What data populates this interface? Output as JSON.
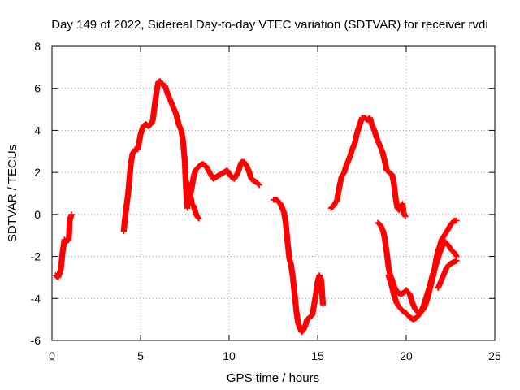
{
  "chart_data": {
    "type": "scatter",
    "title": "Day 149 of 2022, Sidereal Day-to-day VTEC variation (SDTVAR) for receiver rvdi",
    "xlabel": "GPS time / hours",
    "ylabel": "SDTVAR / TECUs",
    "xlim": [
      0,
      25
    ],
    "ylim": [
      -6,
      8
    ],
    "xticks": [
      "0",
      "5",
      "10",
      "15",
      "20",
      "25"
    ],
    "yticks": [
      "-6",
      "-4",
      "-2",
      "0",
      "2",
      "4",
      "6",
      "8"
    ],
    "grid": true,
    "marker": "+",
    "color": "#ff0000",
    "segments": [
      [
        [
          0.2,
          -2.9
        ],
        [
          0.35,
          -3.0
        ],
        [
          0.5,
          -2.6
        ],
        [
          0.6,
          -1.8
        ],
        [
          0.7,
          -1.2
        ],
        [
          0.8,
          -1.3
        ],
        [
          0.95,
          -1.2
        ],
        [
          1.0,
          -0.3
        ],
        [
          1.1,
          0.0
        ]
      ],
      [
        [
          4.05,
          -0.8
        ],
        [
          4.15,
          0.0
        ],
        [
          4.3,
          1.0
        ],
        [
          4.45,
          2.4
        ],
        [
          4.55,
          2.9
        ],
        [
          4.7,
          3.1
        ],
        [
          4.85,
          3.1
        ],
        [
          5.0,
          3.8
        ],
        [
          5.15,
          4.2
        ],
        [
          5.3,
          4.3
        ],
        [
          5.45,
          4.2
        ],
        [
          5.6,
          4.3
        ],
        [
          5.7,
          4.5
        ],
        [
          5.8,
          5.2
        ],
        [
          5.9,
          5.8
        ],
        [
          6.0,
          6.3
        ],
        [
          6.1,
          6.35
        ],
        [
          6.2,
          6.2
        ],
        [
          6.4,
          6.1
        ],
        [
          6.5,
          5.8
        ],
        [
          6.65,
          5.5
        ],
        [
          6.8,
          5.2
        ],
        [
          7.0,
          4.8
        ],
        [
          7.15,
          4.3
        ],
        [
          7.3,
          4.0
        ],
        [
          7.4,
          3.5
        ],
        [
          7.5,
          2.5
        ],
        [
          7.55,
          1.5
        ],
        [
          7.6,
          0.8
        ],
        [
          7.65,
          0.3
        ]
      ],
      [
        [
          7.7,
          0.5
        ],
        [
          7.8,
          0.9
        ],
        [
          7.9,
          1.3
        ],
        [
          8.0,
          1.8
        ],
        [
          8.1,
          2.1
        ],
        [
          8.3,
          2.3
        ],
        [
          8.5,
          2.4
        ],
        [
          8.7,
          2.3
        ],
        [
          8.9,
          2.0
        ],
        [
          9.1,
          1.7
        ],
        [
          9.3,
          1.8
        ],
        [
          9.5,
          1.9
        ],
        [
          9.7,
          2.0
        ],
        [
          9.9,
          2.1
        ],
        [
          10.1,
          1.8
        ],
        [
          10.3,
          1.7
        ],
        [
          10.5,
          2.0
        ],
        [
          10.7,
          2.5
        ],
        [
          10.85,
          2.5
        ],
        [
          11.0,
          2.3
        ],
        [
          11.1,
          2.1
        ],
        [
          11.25,
          1.7
        ],
        [
          11.4,
          1.6
        ],
        [
          11.6,
          1.5
        ],
        [
          11.7,
          1.4
        ]
      ],
      [
        [
          7.7,
          1.5
        ],
        [
          7.8,
          1.0
        ],
        [
          7.9,
          0.5
        ],
        [
          8.0,
          0.4
        ],
        [
          8.1,
          0.1
        ],
        [
          8.2,
          -0.1
        ],
        [
          8.3,
          -0.2
        ]
      ],
      [
        [
          12.5,
          0.7
        ],
        [
          12.7,
          0.7
        ],
        [
          12.9,
          0.5
        ],
        [
          13.1,
          0.1
        ],
        [
          13.2,
          -0.4
        ],
        [
          13.3,
          -1.3
        ],
        [
          13.4,
          -2.1
        ],
        [
          13.5,
          -2.4
        ],
        [
          13.6,
          -3.0
        ],
        [
          13.7,
          -3.8
        ],
        [
          13.8,
          -4.6
        ],
        [
          13.9,
          -5.2
        ],
        [
          14.0,
          -5.4
        ],
        [
          14.1,
          -5.6
        ],
        [
          14.2,
          -5.5
        ],
        [
          14.3,
          -5.3
        ],
        [
          14.4,
          -5.0
        ],
        [
          14.55,
          -4.9
        ],
        [
          14.7,
          -4.8
        ],
        [
          14.8,
          -4.3
        ],
        [
          14.9,
          -3.8
        ],
        [
          15.0,
          -3.2
        ],
        [
          15.1,
          -2.9
        ],
        [
          15.2,
          -3.1
        ],
        [
          15.3,
          -4.3
        ]
      ],
      [
        [
          15.75,
          0.3
        ],
        [
          15.9,
          0.4
        ],
        [
          16.1,
          0.7
        ],
        [
          16.2,
          1.2
        ],
        [
          16.35,
          1.8
        ],
        [
          16.5,
          2.0
        ],
        [
          16.6,
          2.3
        ],
        [
          16.8,
          2.7
        ],
        [
          16.95,
          3.1
        ],
        [
          17.1,
          3.4
        ],
        [
          17.2,
          3.8
        ],
        [
          17.35,
          4.2
        ],
        [
          17.5,
          4.6
        ],
        [
          17.65,
          4.6
        ],
        [
          17.8,
          4.5
        ],
        [
          17.95,
          4.6
        ],
        [
          18.05,
          4.3
        ],
        [
          18.2,
          4.0
        ],
        [
          18.35,
          3.6
        ],
        [
          18.5,
          3.3
        ],
        [
          18.65,
          3.0
        ],
        [
          18.8,
          2.5
        ],
        [
          18.9,
          2.1
        ],
        [
          19.05,
          2.0
        ],
        [
          19.2,
          1.9
        ],
        [
          19.3,
          1.5
        ],
        [
          19.4,
          0.8
        ],
        [
          19.5,
          0.3
        ],
        [
          19.6,
          0.2
        ],
        [
          19.7,
          0.4
        ],
        [
          19.8,
          0.5
        ],
        [
          19.85,
          0.1
        ],
        [
          19.95,
          -0.1
        ]
      ],
      [
        [
          18.4,
          -0.4
        ],
        [
          18.55,
          -0.5
        ],
        [
          18.7,
          -0.8
        ],
        [
          18.8,
          -1.2
        ],
        [
          18.9,
          -1.8
        ],
        [
          19.0,
          -2.5
        ],
        [
          19.1,
          -2.9
        ],
        [
          19.2,
          -3.1
        ],
        [
          19.35,
          -3.5
        ],
        [
          19.5,
          -3.7
        ],
        [
          19.7,
          -3.8
        ],
        [
          19.9,
          -3.7
        ],
        [
          20.0,
          -3.6
        ],
        [
          20.2,
          -3.8
        ],
        [
          20.35,
          -4.2
        ],
        [
          20.5,
          -4.5
        ],
        [
          20.7,
          -4.7
        ],
        [
          20.9,
          -4.6
        ],
        [
          21.05,
          -4.4
        ],
        [
          21.2,
          -4.0
        ],
        [
          21.35,
          -3.5
        ],
        [
          21.5,
          -3.0
        ],
        [
          21.6,
          -2.6
        ],
        [
          21.7,
          -2.1
        ],
        [
          21.8,
          -1.7
        ],
        [
          21.9,
          -1.5
        ],
        [
          22.0,
          -1.2
        ],
        [
          22.15,
          -1.0
        ],
        [
          22.3,
          -0.8
        ],
        [
          22.5,
          -0.5
        ],
        [
          22.7,
          -0.3
        ],
        [
          22.85,
          -0.3
        ]
      ],
      [
        [
          19.0,
          -2.9
        ],
        [
          19.15,
          -3.3
        ],
        [
          19.3,
          -3.8
        ],
        [
          19.45,
          -4.2
        ],
        [
          19.6,
          -4.4
        ],
        [
          19.8,
          -4.6
        ],
        [
          20.0,
          -4.7
        ],
        [
          20.2,
          -4.9
        ],
        [
          20.4,
          -5.0
        ],
        [
          20.6,
          -4.9
        ],
        [
          20.8,
          -4.7
        ],
        [
          21.0,
          -4.3
        ],
        [
          21.15,
          -3.9
        ],
        [
          21.3,
          -3.5
        ],
        [
          21.45,
          -3.0
        ],
        [
          21.6,
          -2.6
        ],
        [
          21.75,
          -2.2
        ],
        [
          21.9,
          -1.8
        ],
        [
          22.05,
          -1.5
        ],
        [
          22.2,
          -1.3
        ],
        [
          22.4,
          -1.5
        ],
        [
          22.55,
          -1.7
        ],
        [
          22.7,
          -1.8
        ],
        [
          22.85,
          -2.0
        ]
      ],
      [
        [
          21.8,
          -3.5
        ],
        [
          21.95,
          -3.2
        ],
        [
          22.1,
          -2.9
        ],
        [
          22.25,
          -2.6
        ],
        [
          22.4,
          -2.4
        ],
        [
          22.6,
          -2.3
        ],
        [
          22.85,
          -2.2
        ]
      ]
    ]
  }
}
